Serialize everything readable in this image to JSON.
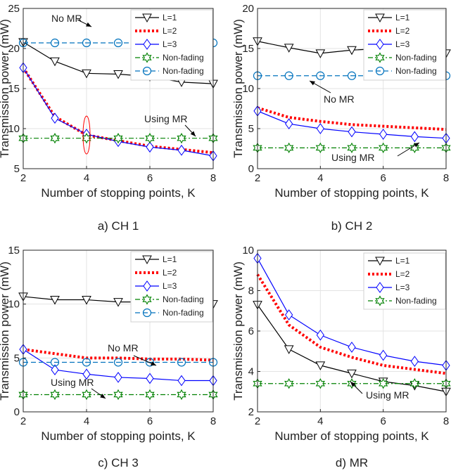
{
  "figure": {
    "charts": [
      {
        "caption": "a) CH 1"
      },
      {
        "caption": "b) CH 2"
      },
      {
        "caption": "c) CH 3"
      },
      {
        "caption": "d) MR"
      }
    ]
  },
  "chart_data": [
    {
      "type": "line",
      "caption": "a) CH 1",
      "xlabel": "Number of stopping points, K",
      "ylabel": "Transmission power (mW)",
      "xlim": [
        2,
        8
      ],
      "ylim": [
        5,
        25
      ],
      "xticks": [
        "2",
        "4",
        "6",
        "8"
      ],
      "yticks": [
        "5",
        "10",
        "15",
        "20",
        "25"
      ],
      "grid": true,
      "legend_position": "top-right",
      "x": [
        2,
        3,
        4,
        5,
        6,
        7,
        8
      ],
      "series": [
        {
          "name": "L=1",
          "color": "#000000",
          "marker": "triangle-down",
          "style": "solid",
          "values": [
            20.8,
            18.4,
            16.9,
            16.8,
            16.5,
            15.8,
            15.6
          ]
        },
        {
          "name": "L=2",
          "color": "#ff0000",
          "marker": "none",
          "style": "dotted-thick",
          "values": [
            17.6,
            11.5,
            9.2,
            8.5,
            7.8,
            7.4,
            7.0
          ]
        },
        {
          "name": "L=3",
          "color": "#0000ff",
          "marker": "diamond",
          "style": "solid",
          "values": [
            17.6,
            11.3,
            9.3,
            8.4,
            7.7,
            7.3,
            6.6
          ]
        },
        {
          "name": "Non-fading",
          "color": "#008000",
          "marker": "hexagram",
          "style": "dash-dot",
          "values": [
            8.8,
            8.8,
            8.8,
            8.8,
            8.8,
            8.8,
            8.8
          ]
        },
        {
          "name": "Non-fading",
          "color": "#0072bd",
          "marker": "circle",
          "style": "dashed",
          "values": [
            20.7,
            20.7,
            20.7,
            20.7,
            20.7,
            20.7,
            20.7
          ]
        }
      ],
      "annotations": [
        "No MR",
        "Using MR"
      ]
    },
    {
      "type": "line",
      "caption": "b) CH 2",
      "xlabel": "Number of stopping points, K",
      "ylabel": "Transmission power (mW)",
      "xlim": [
        2,
        8
      ],
      "ylim": [
        0,
        20
      ],
      "xticks": [
        "2",
        "4",
        "6",
        "8"
      ],
      "yticks": [
        "0",
        "5",
        "10",
        "15",
        "20"
      ],
      "grid": true,
      "legend_position": "top-right",
      "x": [
        2,
        3,
        4,
        5,
        6,
        7,
        8
      ],
      "series": [
        {
          "name": "L=1",
          "color": "#000000",
          "marker": "triangle-down",
          "style": "solid",
          "values": [
            15.9,
            15.1,
            14.4,
            14.8,
            15.0,
            15.1,
            14.4
          ]
        },
        {
          "name": "L=2",
          "color": "#ff0000",
          "marker": "none",
          "style": "dotted-thick",
          "values": [
            7.6,
            6.4,
            5.9,
            5.5,
            5.3,
            5.1,
            4.9
          ]
        },
        {
          "name": "L=3",
          "color": "#0000ff",
          "marker": "diamond",
          "style": "solid",
          "values": [
            7.2,
            5.6,
            5.0,
            4.6,
            4.3,
            4.0,
            3.8
          ]
        },
        {
          "name": "Non-fading",
          "color": "#008000",
          "marker": "hexagram",
          "style": "dash-dot",
          "values": [
            2.6,
            2.6,
            2.6,
            2.6,
            2.6,
            2.6,
            2.6
          ]
        },
        {
          "name": "Non-fading",
          "color": "#0072bd",
          "marker": "circle",
          "style": "dashed",
          "values": [
            11.6,
            11.6,
            11.6,
            11.6,
            11.6,
            11.6,
            11.6
          ]
        }
      ],
      "annotations": [
        "No MR",
        "Using MR"
      ]
    },
    {
      "type": "line",
      "caption": "c) CH 3",
      "xlabel": "Number of stopping points, K",
      "ylabel": "Transmission power (mW)",
      "xlim": [
        2,
        8
      ],
      "ylim": [
        0,
        15
      ],
      "xticks": [
        "2",
        "4",
        "6",
        "8"
      ],
      "yticks": [
        "0",
        "5",
        "10",
        "15"
      ],
      "grid": true,
      "legend_position": "top-right",
      "x": [
        2,
        3,
        4,
        5,
        6,
        7,
        8
      ],
      "series": [
        {
          "name": "L=1",
          "color": "#000000",
          "marker": "triangle-down",
          "style": "solid",
          "values": [
            10.7,
            10.4,
            10.4,
            10.2,
            10.2,
            10.2,
            10.0
          ]
        },
        {
          "name": "L=2",
          "color": "#ff0000",
          "marker": "none",
          "style": "dotted-thick",
          "values": [
            5.8,
            5.4,
            5.0,
            5.0,
            4.9,
            4.9,
            4.8
          ]
        },
        {
          "name": "L=3",
          "color": "#0000ff",
          "marker": "diamond",
          "style": "solid",
          "values": [
            5.8,
            3.9,
            3.5,
            3.2,
            3.1,
            2.9,
            2.9
          ]
        },
        {
          "name": "Non-fading",
          "color": "#008000",
          "marker": "hexagram",
          "style": "dash-dot",
          "values": [
            1.6,
            1.6,
            1.6,
            1.6,
            1.6,
            1.6,
            1.6
          ]
        },
        {
          "name": "Non-fading",
          "color": "#0072bd",
          "marker": "circle",
          "style": "dashed",
          "values": [
            4.6,
            4.6,
            4.6,
            4.6,
            4.6,
            4.6,
            4.6
          ]
        }
      ],
      "annotations": [
        "No MR",
        "Using MR"
      ]
    },
    {
      "type": "line",
      "caption": "d) MR",
      "xlabel": "Number of stopping points, K",
      "ylabel": "Transmission power (mW)",
      "xlim": [
        2,
        8
      ],
      "ylim": [
        2,
        10
      ],
      "xticks": [
        "2",
        "4",
        "6",
        "8"
      ],
      "yticks": [
        "2",
        "4",
        "6",
        "8",
        "10"
      ],
      "grid": true,
      "legend_position": "top-right",
      "x": [
        2,
        3,
        4,
        5,
        6,
        7,
        8
      ],
      "series": [
        {
          "name": "L=1",
          "color": "#000000",
          "marker": "triangle-down",
          "style": "solid",
          "values": [
            7.3,
            5.1,
            4.3,
            3.9,
            3.5,
            3.3,
            3.0
          ]
        },
        {
          "name": "L=2",
          "color": "#ff0000",
          "marker": "none",
          "style": "dotted-thick",
          "values": [
            8.8,
            6.3,
            5.2,
            4.7,
            4.3,
            4.1,
            3.9
          ]
        },
        {
          "name": "L=3",
          "color": "#0000ff",
          "marker": "diamond",
          "style": "solid",
          "values": [
            9.6,
            6.8,
            5.8,
            5.2,
            4.8,
            4.5,
            4.3
          ]
        },
        {
          "name": "Non-fading",
          "color": "#008000",
          "marker": "hexagram",
          "style": "dash-dot",
          "values": [
            3.4,
            3.4,
            3.4,
            3.4,
            3.4,
            3.4,
            3.4
          ]
        }
      ],
      "annotations": [
        "Using MR"
      ]
    }
  ]
}
